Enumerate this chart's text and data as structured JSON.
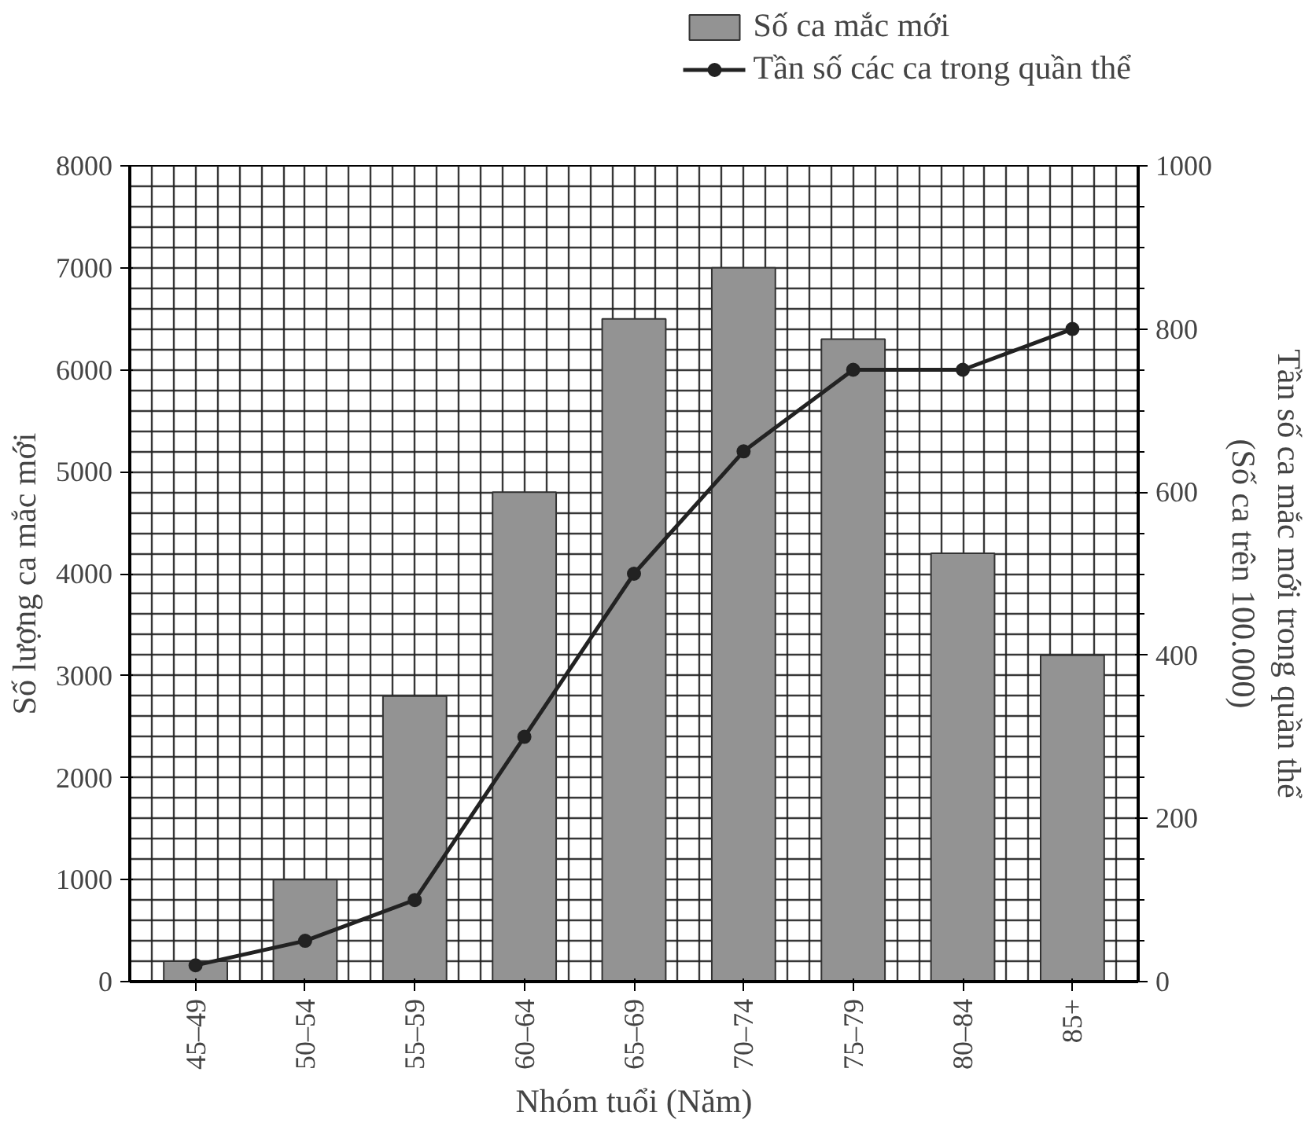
{
  "chart_data": {
    "type": "bar",
    "categories": [
      "45–49",
      "50–54",
      "55–59",
      "60–64",
      "65–69",
      "70–74",
      "75–79",
      "80–84",
      "85+"
    ],
    "xlabel": "Nhóm tuổi (Năm)",
    "ylabel": "Số lượng ca mắc mới",
    "y2label": "Tần số ca mắc mới trong quần thể\n(Số ca trên 100.000)",
    "series": [
      {
        "name": "Số ca mắc mới",
        "color": "#939393",
        "values": [
          200,
          1000,
          2800,
          4800,
          6500,
          7000,
          6300,
          4200,
          3200
        ]
      },
      {
        "name": "Tần số các ca trong quần thể",
        "type": "line",
        "axis": "y2",
        "color": "#222222",
        "marker": "circle",
        "line_style": "solid",
        "values": [
          20,
          50,
          100,
          300,
          500,
          650,
          750,
          750,
          800
        ]
      }
    ],
    "ylim": [
      0,
      8000
    ],
    "yticks": [
      0,
      1000,
      2000,
      3000,
      4000,
      5000,
      6000,
      7000,
      8000
    ],
    "y2lim": [
      0,
      1000
    ],
    "y2ticks": [
      0,
      200,
      400,
      600,
      800,
      1000
    ],
    "grid": true,
    "legend": "top right"
  }
}
